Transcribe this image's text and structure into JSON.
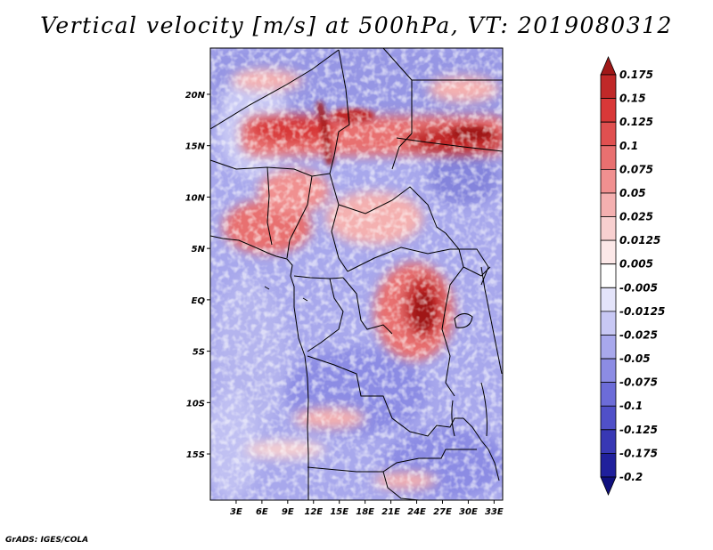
{
  "title": "Vertical velocity [m/s] at 500hPa, VT: 2019080312",
  "footer": "GrADS: IGES/COLA",
  "map": {
    "lat_range": [
      -19.5,
      24.5
    ],
    "lon_range": [
      0,
      34
    ]
  },
  "axes": {
    "lat_ticks": [
      {
        "value": 20,
        "label": "20N"
      },
      {
        "value": 15,
        "label": "15N"
      },
      {
        "value": 10,
        "label": "10N"
      },
      {
        "value": 5,
        "label": "5N"
      },
      {
        "value": 0,
        "label": "EQ"
      },
      {
        "value": -5,
        "label": "5S"
      },
      {
        "value": -10,
        "label": "10S"
      },
      {
        "value": -15,
        "label": "15S"
      }
    ],
    "lon_ticks": [
      {
        "value": 3,
        "label": "3E"
      },
      {
        "value": 6,
        "label": "6E"
      },
      {
        "value": 9,
        "label": "9E"
      },
      {
        "value": 12,
        "label": "12E"
      },
      {
        "value": 15,
        "label": "15E"
      },
      {
        "value": 18,
        "label": "18E"
      },
      {
        "value": 21,
        "label": "21E"
      },
      {
        "value": 24,
        "label": "24E"
      },
      {
        "value": 27,
        "label": "27E"
      },
      {
        "value": 30,
        "label": "30E"
      },
      {
        "value": 33,
        "label": "33E"
      }
    ]
  },
  "colorbar": {
    "labels": [
      "0.175",
      "0.15",
      "0.125",
      "0.1",
      "0.075",
      "0.05",
      "0.025",
      "0.0125",
      "0.005",
      "-0.005",
      "-0.0125",
      "-0.025",
      "-0.05",
      "-0.075",
      "-0.1",
      "-0.125",
      "-0.175",
      "-0.2"
    ],
    "colors": [
      "#a01818",
      "#c02828",
      "#d83838",
      "#e05050",
      "#e87070",
      "#f09090",
      "#f4b0b0",
      "#f8d0d0",
      "#fce8e8",
      "#ffffff",
      "#e4e4fa",
      "#c8c8f4",
      "#a8a8ec",
      "#8c8ce4",
      "#6c6cd8",
      "#5050c8",
      "#3838b4",
      "#20209c",
      "#10107e"
    ]
  },
  "chart_data": {
    "type": "heatmap",
    "title": "Vertical velocity [m/s] at 500hPa, VT: 2019080312",
    "variable": "Vertical velocity",
    "units": "m/s",
    "level": "500hPa",
    "valid_time": "2019080312",
    "xlabel": "",
    "ylabel": "",
    "xlim": [
      0,
      34
    ],
    "ylim": [
      -19.5,
      24.5
    ],
    "contour_levels": [
      -0.2,
      -0.175,
      -0.125,
      -0.1,
      -0.075,
      -0.05,
      -0.025,
      -0.0125,
      -0.005,
      0.005,
      0.0125,
      0.025,
      0.05,
      0.075,
      0.1,
      0.125,
      0.15,
      0.175
    ],
    "features": [
      {
        "region": "Sahel band (12-18N, 4-34E)",
        "sign": "positive (ascent)",
        "peak": 0.175
      },
      {
        "region": "Lake Chad line (~14E, 11-20N)",
        "sign": "positive (ascent)",
        "peak": 0.175
      },
      {
        "region": "Great Lakes / eastern Congo (22-30E, 0-7S)",
        "sign": "positive (ascent)",
        "peak": 0.15
      },
      {
        "region": "Gulf of Guinea coast (5-10N, 3-12E)",
        "sign": "positive (ascent)",
        "peak": 0.1
      },
      {
        "region": "Southern Africa (10-20S)",
        "sign": "negative (descent)",
        "peak": -0.05
      }
    ]
  }
}
